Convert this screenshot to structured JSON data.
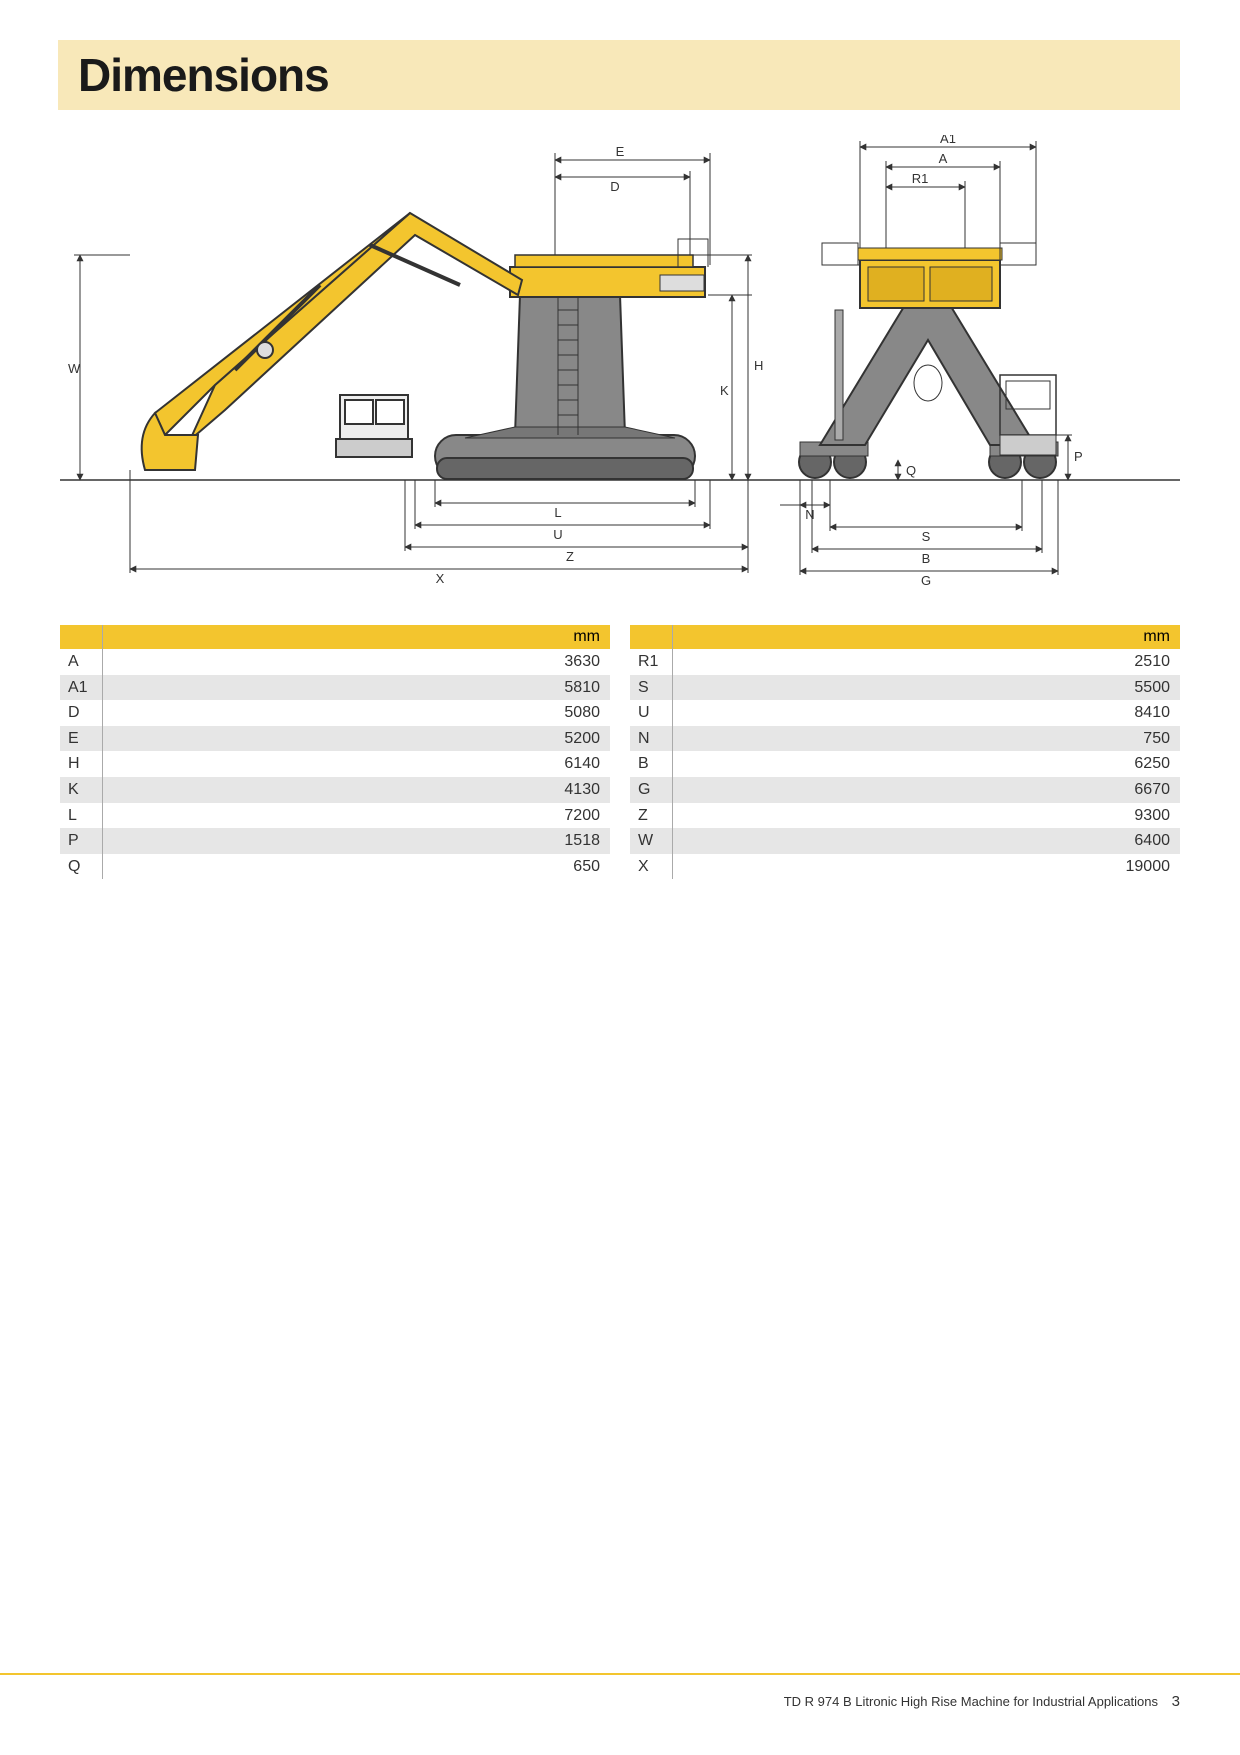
{
  "title": "Dimensions",
  "footer": {
    "text": "TD R 974 B Litronic High Rise Machine for Industrial Applications",
    "page_number": "3"
  },
  "tables": {
    "unit_header": "mm",
    "left": [
      {
        "label": "A",
        "value": "3630"
      },
      {
        "label": "A1",
        "value": "5810"
      },
      {
        "label": "D",
        "value": "5080"
      },
      {
        "label": "E",
        "value": "5200"
      },
      {
        "label": "H",
        "value": "6140"
      },
      {
        "label": "K",
        "value": "4130"
      },
      {
        "label": "L",
        "value": "7200"
      },
      {
        "label": "P",
        "value": "1518"
      },
      {
        "label": "Q",
        "value": "650"
      }
    ],
    "right": [
      {
        "label": "R1",
        "value": "2510"
      },
      {
        "label": "S",
        "value": "5500"
      },
      {
        "label": "U",
        "value": "8410"
      },
      {
        "label": "N",
        "value": "750"
      },
      {
        "label": "B",
        "value": "6250"
      },
      {
        "label": "G",
        "value": "6670"
      },
      {
        "label": "Z",
        "value": "9300"
      },
      {
        "label": "W",
        "value": "6400"
      },
      {
        "label": "X",
        "value": "19000"
      }
    ]
  },
  "diagram": {
    "colors": {
      "machine_body": "#f3c52e",
      "machine_stroke": "#333333",
      "structural_gray": "#888888",
      "dimension_line": "#333333",
      "dimension_text": "#333333",
      "ground_line": "#333333"
    },
    "labels_side": [
      "A1",
      "A",
      "R1",
      "E",
      "D",
      "H",
      "K",
      "P",
      "Q",
      "N",
      "L",
      "U",
      "S",
      "Z",
      "B",
      "X",
      "G",
      "W"
    ],
    "text_fontsize": 13
  }
}
